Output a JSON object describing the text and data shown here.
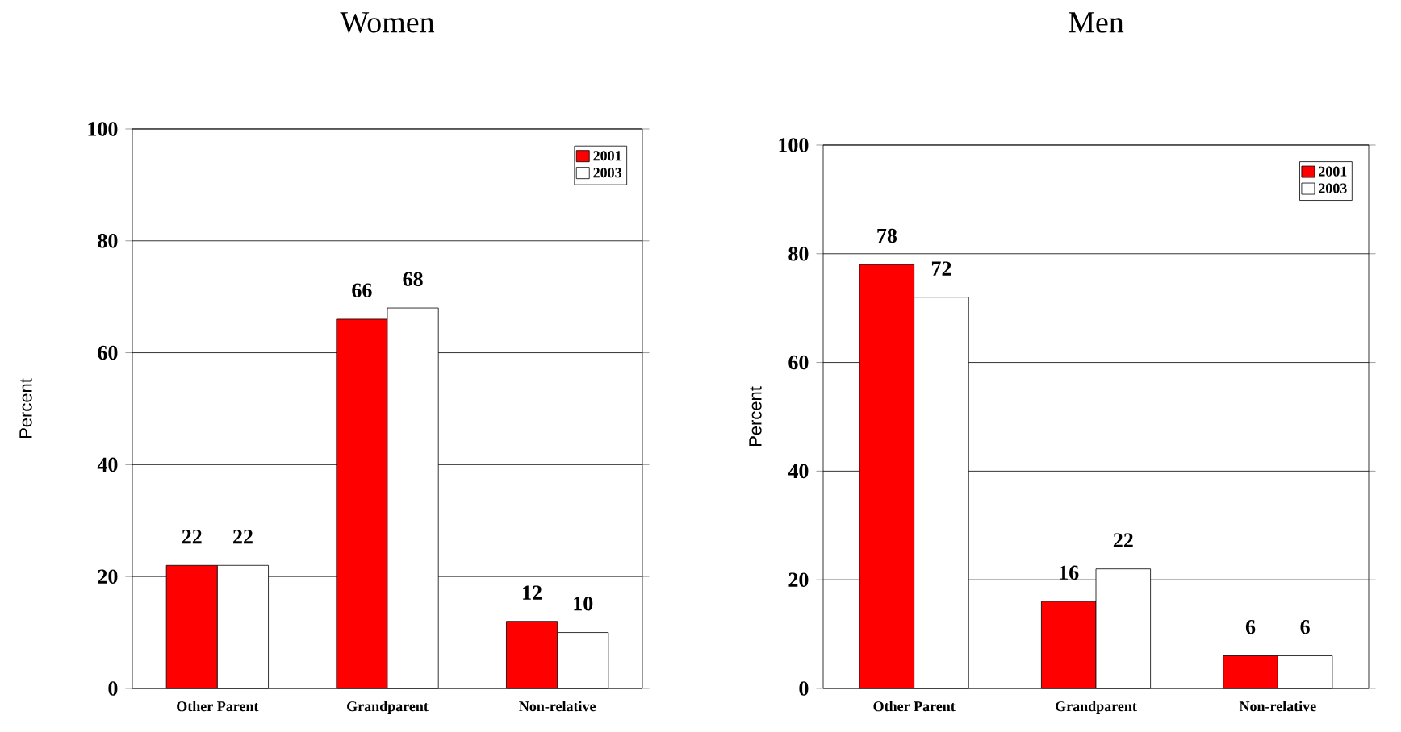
{
  "chart_data": [
    {
      "type": "bar",
      "title": "Women",
      "ylabel": "Percent",
      "categories": [
        "Other Parent",
        "Grandparent",
        "Non-relative"
      ],
      "series": [
        {
          "name": "2001",
          "color": "#ff0000",
          "values": [
            22,
            66,
            12
          ]
        },
        {
          "name": "2003",
          "color": "#ffffff",
          "values": [
            22,
            68,
            10
          ]
        }
      ],
      "ylim": [
        0,
        100
      ],
      "yticks": [
        0,
        20,
        40,
        60,
        80,
        100
      ],
      "grid": "y",
      "legend": "top right",
      "data_labels": true
    },
    {
      "type": "bar",
      "title": "Men",
      "ylabel": "Percent",
      "categories": [
        "Other Parent",
        "Grandparent",
        "Non-relative"
      ],
      "series": [
        {
          "name": "2001",
          "color": "#ff0000",
          "values": [
            78,
            16,
            6
          ]
        },
        {
          "name": "2003",
          "color": "#ffffff",
          "values": [
            72,
            22,
            6
          ]
        }
      ],
      "ylim": [
        0,
        100
      ],
      "yticks": [
        0,
        20,
        40,
        60,
        80,
        100
      ],
      "grid": "y",
      "legend": "top right",
      "data_labels": true
    }
  ]
}
